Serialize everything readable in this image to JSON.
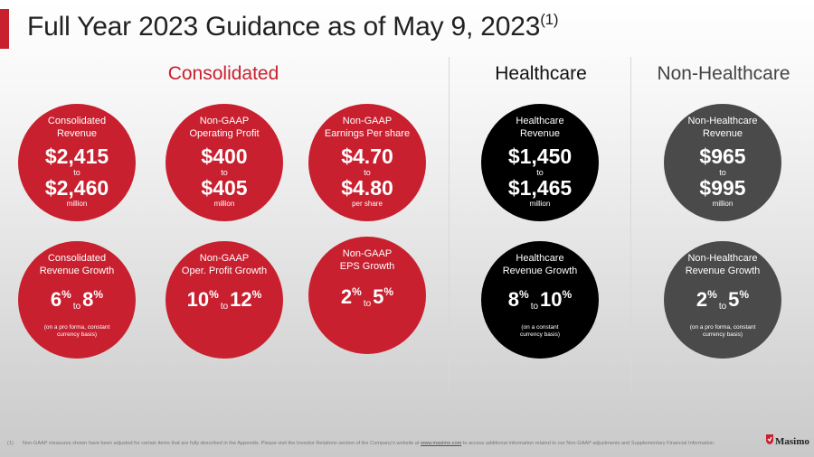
{
  "title": {
    "text": "Full Year 2023 Guidance as of May 9, 2023",
    "superscript": "(1)"
  },
  "colors": {
    "brand_red": "#c8202f",
    "healthcare_black": "#000000",
    "nonhealthcare_gray": "#4a4a4a"
  },
  "sections": {
    "consolidated": "Consolidated",
    "healthcare": "Healthcare",
    "non_healthcare": "Non-Healthcare"
  },
  "cards": {
    "cons_revenue": {
      "label_line1": "Consolidated",
      "label_line2": "Revenue",
      "low": "$2,415",
      "to": "to",
      "high": "$2,460",
      "unit": "million"
    },
    "opprofit": {
      "label_line1": "Non-GAAP",
      "label_line2": "Operating Profit",
      "low": "$400",
      "to": "to",
      "high": "$405",
      "unit": "million"
    },
    "eps": {
      "label_line1": "Non-GAAP",
      "label_line2": "Earnings Per share",
      "low": "$4.70",
      "to": "to",
      "high": "$4.80",
      "unit": "per share"
    },
    "hc_revenue": {
      "label_line1": "Healthcare",
      "label_line2": "Revenue",
      "low": "$1,450",
      "to": "to",
      "high": "$1,465",
      "unit": "million"
    },
    "nhc_revenue": {
      "label_line1": "Non-Healthcare",
      "label_line2": "Revenue",
      "low": "$965",
      "to": "to",
      "high": "$995",
      "unit": "million"
    },
    "cons_growth": {
      "label_line1": "Consolidated",
      "label_line2": "Revenue Growth",
      "low": "6",
      "to": "to",
      "high": "8",
      "pct": "%",
      "note_line1": "(on a pro forma, constant",
      "note_line2": "currency basis)"
    },
    "opprofit_growth": {
      "label_line1": "Non-GAAP",
      "label_line2": "Oper. Profit Growth",
      "low": "10",
      "to": "to",
      "high": "12",
      "pct": "%"
    },
    "eps_growth": {
      "label_line1": "Non-GAAP",
      "label_line2": "EPS Growth",
      "low": "2",
      "to": "to",
      "high": "5",
      "pct": "%"
    },
    "hc_growth": {
      "label_line1": "Healthcare",
      "label_line2": "Revenue Growth",
      "low": "8",
      "to": "to",
      "high": "10",
      "pct": "%",
      "note_line1": "(on a constant",
      "note_line2": "currency basis)"
    },
    "nhc_growth": {
      "label_line1": "Non-Healthcare",
      "label_line2": "Revenue Growth",
      "low": "2",
      "to": "to",
      "high": "5",
      "pct": "%",
      "note_line1": "(on a pro forma, constant",
      "note_line2": "currency basis)"
    }
  },
  "footnote": {
    "marker": "(1)",
    "text_before_link": "Non-GAAP measures shown have been adjusted for certain items that are fully described in the Appendix. Please visit the Investor Relations section of the Company's website at ",
    "link": "www.masimo.com",
    "text_after_link": " to access additional information related to our Non-GAAP adjustments and Supplementary Financial Information."
  },
  "logo": {
    "text": "Masimo",
    "icon": "masimo-logo-icon"
  }
}
